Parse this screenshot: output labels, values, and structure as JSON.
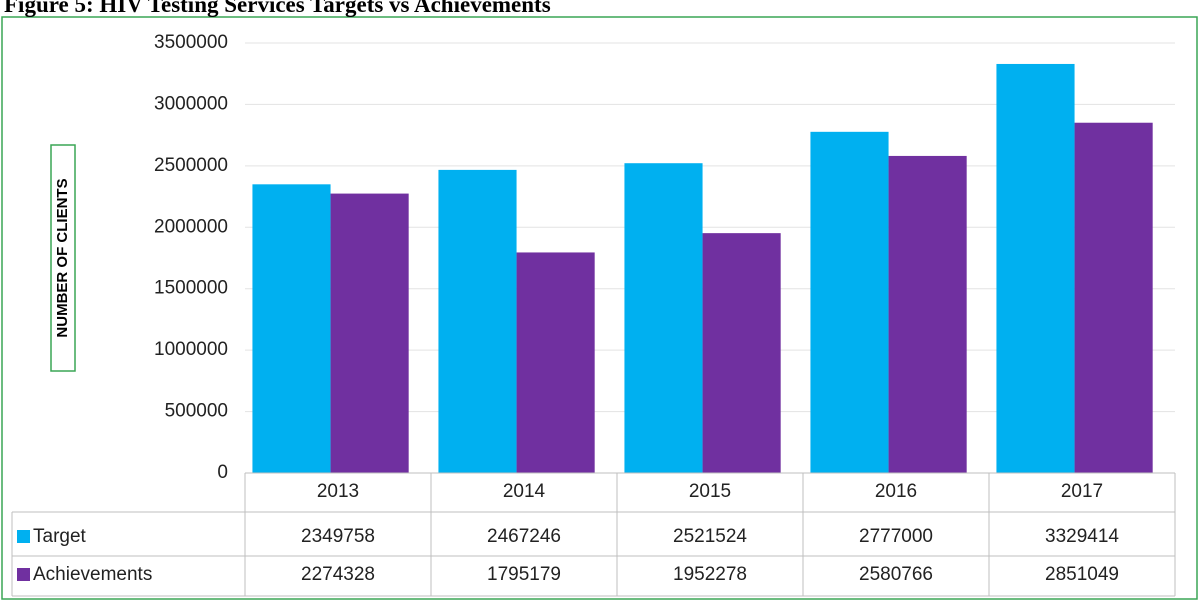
{
  "chart_data": {
    "type": "bar",
    "title": "Figure 5: HIV Testing Services Targets vs Achievements",
    "y_label": "NUMBER OF CLIENTS",
    "categories": [
      "2013",
      "2014",
      "2015",
      "2016",
      "2017"
    ],
    "series": [
      {
        "name": "Target",
        "color": "#00b0f0",
        "values": [
          2349758,
          2467246,
          2521524,
          2777000,
          3329414
        ]
      },
      {
        "name": "Achievements",
        "color": "#7030a0",
        "values": [
          2274328,
          1795179,
          1952278,
          2580766,
          2851049
        ]
      }
    ],
    "ylim": [
      0,
      3500000
    ],
    "yticks": [
      0,
      500000,
      1000000,
      1500000,
      2000000,
      2500000,
      3000000,
      3500000
    ],
    "grid": true
  }
}
